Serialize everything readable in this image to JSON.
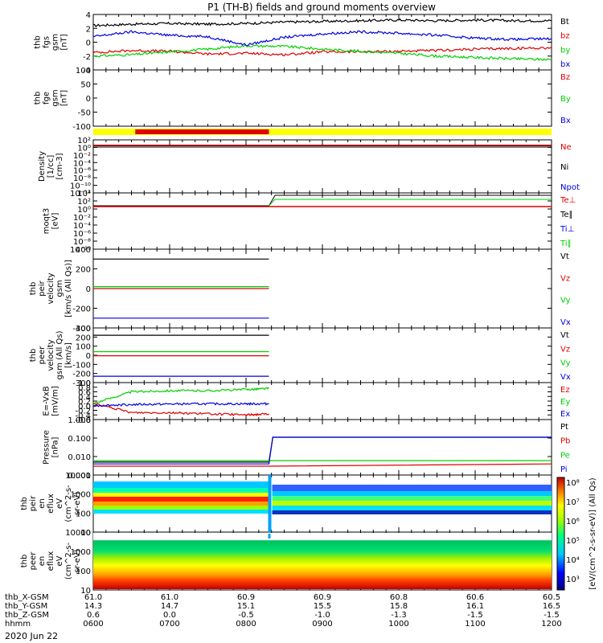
{
  "title": "P1 (TH-B) fields and ground moments overview",
  "date_label": "2020 Jun 22",
  "colors": {
    "black": "#000000",
    "red": "#e00000",
    "green": "#00d000",
    "blue": "#0000e0",
    "yellow": "#ffff00",
    "bar_red": "#e00000",
    "darkred": "#a00000"
  },
  "panels": [
    {
      "id": "fgs",
      "ylabel": [
        "thb",
        "fgs",
        "gsm",
        "[nT]"
      ],
      "ticks": [
        "4",
        "2",
        "0",
        "-2",
        "-4"
      ],
      "legend": [
        {
          "text": "Bt",
          "color": "#000000"
        },
        {
          "text": "bz",
          "color": "#e00000"
        },
        {
          "text": "by",
          "color": "#00d000"
        },
        {
          "text": "bx",
          "color": "#0000e0"
        }
      ]
    },
    {
      "id": "fge",
      "ylabel": [
        "thb",
        "fge",
        "gsm",
        "[nT]"
      ],
      "ticks": [
        "100",
        "50",
        "0",
        "-50",
        "-100"
      ],
      "legend": [
        {
          "text": "Bz",
          "color": "#e00000"
        },
        {
          "text": "By",
          "color": "#00d000"
        },
        {
          "text": "Bx",
          "color": "#0000e0"
        }
      ]
    },
    {
      "id": "density",
      "ylabel": [
        "Density",
        "[1/cc]",
        "[cm-3]"
      ],
      "ticks": [
        "10²",
        "10⁰",
        "10⁻²",
        "10⁻⁴",
        "10⁻⁶",
        "10⁻⁸",
        "10⁻¹⁰",
        "10⁻¹²"
      ],
      "legend": [
        {
          "text": "Ne",
          "color": "#e00000"
        },
        {
          "text": "Ni",
          "color": "#000000"
        },
        {
          "text": "Npot",
          "color": "#0000e0"
        }
      ]
    },
    {
      "id": "temp",
      "ylabel": [
        "moqt3",
        "[eV]"
      ],
      "ticks": [
        "10⁴",
        "10²",
        "10⁰",
        "10⁻²",
        "10⁻⁴",
        "10⁻⁶",
        "10⁻⁸",
        "10⁻¹⁰"
      ],
      "legend": [
        {
          "text": "Te⊥",
          "color": "#e00000"
        },
        {
          "text": "Te∥",
          "color": "#000000"
        },
        {
          "text": "Ti⊥",
          "color": "#0000e0"
        },
        {
          "text": "Ti∥",
          "color": "#00d000"
        }
      ]
    },
    {
      "id": "vi",
      "ylabel": [
        "thb",
        "peir",
        "velocity",
        "gsm",
        "[km/s (All Qs)]"
      ],
      "ticks": [
        "400",
        "200",
        "0",
        "-200",
        "-400"
      ],
      "legend": [
        {
          "text": "Vt",
          "color": "#000000"
        },
        {
          "text": "Vz",
          "color": "#e00000"
        },
        {
          "text": "Vy",
          "color": "#00d000"
        },
        {
          "text": "Vx",
          "color": "#0000e0"
        }
      ]
    },
    {
      "id": "ve",
      "ylabel": [
        "thb",
        "peer",
        "velocity",
        "gsm (All Qs)",
        "[km/s]"
      ],
      "ticks": [
        "300",
        "200",
        "100",
        "0",
        "-100",
        "-200",
        "-300"
      ],
      "legend": [
        {
          "text": "Vt",
          "color": "#000000"
        },
        {
          "text": "Vz",
          "color": "#e00000"
        },
        {
          "text": "Vy",
          "color": "#00d000"
        },
        {
          "text": "Vx",
          "color": "#0000e0"
        }
      ]
    },
    {
      "id": "efield",
      "ylabel": [
        "E=-VxB",
        "[mV/m]"
      ],
      "ticks": [
        "1.0",
        "0.8",
        "0.6",
        "0.4",
        "0.2",
        "0.0",
        "-0.2",
        "-0.4",
        "-0.6"
      ],
      "legend": [
        {
          "text": "Ez",
          "color": "#e00000"
        },
        {
          "text": "Ey",
          "color": "#00d000"
        },
        {
          "text": "Ex",
          "color": "#0000e0"
        }
      ]
    },
    {
      "id": "pressure",
      "ylabel": [
        "Pressure",
        "[nPa]"
      ],
      "ticks": [
        "1.000",
        "0.100",
        "0.010",
        "0.001"
      ],
      "legend": [
        {
          "text": "Pt",
          "color": "#000000"
        },
        {
          "text": "Pb",
          "color": "#e00000"
        },
        {
          "text": "Pe",
          "color": "#00d000"
        },
        {
          "text": "Pi",
          "color": "#0000e0"
        }
      ]
    },
    {
      "id": "ispec",
      "ylabel": [
        "thb",
        "peir",
        "en",
        "eflux",
        "eV",
        "(cm^2-s-",
        "sr-eV)"
      ],
      "ticks": [
        "10000",
        "1000",
        "100",
        "10"
      ],
      "legend": []
    },
    {
      "id": "espec",
      "ylabel": [
        "thb",
        "peer",
        "en",
        "eflux",
        "eV",
        "(cm^2-s-",
        "sr-eV)"
      ],
      "ticks": [
        "10000",
        "1000",
        "100",
        "10"
      ],
      "legend": []
    }
  ],
  "colorbar": {
    "label": "[eV/(cm^2-s-sr-eV)] (All Qs)",
    "ticks": [
      "10⁸",
      "10⁷",
      "10⁶",
      "10⁵",
      "10⁴",
      "10³"
    ]
  },
  "footer": {
    "rows": [
      {
        "label": "thb_X-GSM",
        "values": [
          "61.0",
          "61.0",
          "60.9",
          "60.9",
          "60.8",
          "60.6",
          "60.5"
        ]
      },
      {
        "label": "thb_Y-GSM",
        "values": [
          "14.3",
          "14.7",
          "15.1",
          "15.5",
          "15.8",
          "16.1",
          "16.5"
        ]
      },
      {
        "label": "thb_Z-GSM",
        "values": [
          "0.6",
          "0.0",
          "-0.5",
          "-1.0",
          "-1.3",
          "-1.5",
          "-1.5"
        ]
      },
      {
        "label": "hhmm",
        "values": [
          "0600",
          "0700",
          "0800",
          "0900",
          "1000",
          "1100",
          "1200"
        ]
      }
    ]
  },
  "chart_data": {
    "type": "line",
    "title": "P1 (TH-B) fields and ground moments overview",
    "x": [
      "0600",
      "0700",
      "0800",
      "0900",
      "1000",
      "1100",
      "1200"
    ],
    "x_range_hours": [
      6,
      12
    ],
    "panels": [
      {
        "id": "fgs",
        "ylim": [
          -4,
          4
        ],
        "series": [
          {
            "name": "Bt",
            "color": "#000000",
            "t": [
              6.0,
              6.5,
              7.0,
              7.5,
              8.0,
              8.5,
              9.0,
              9.5,
              10.0,
              10.5,
              11.0,
              11.5,
              12.0
            ],
            "y": [
              2.4,
              2.6,
              2.7,
              2.6,
              2.7,
              2.9,
              3.0,
              3.1,
              3.2,
              3.1,
              3.2,
              3.1,
              3.1
            ]
          },
          {
            "name": "bz",
            "color": "#e00000",
            "t": [
              6.0,
              6.5,
              7.0,
              7.5,
              8.0,
              8.5,
              9.0,
              9.5,
              10.0,
              10.5,
              11.0,
              11.5,
              12.0
            ],
            "y": [
              -1.5,
              -1.2,
              -1.3,
              -1.7,
              -1.6,
              -1.8,
              -1.4,
              -1.4,
              -1.3,
              -1.2,
              -1.0,
              -0.9,
              -0.8
            ]
          },
          {
            "name": "by",
            "color": "#00d000",
            "t": [
              6.0,
              6.5,
              7.0,
              7.5,
              8.0,
              8.5,
              9.0,
              9.5,
              10.0,
              10.5,
              11.0,
              11.5,
              12.0
            ],
            "y": [
              -2.0,
              -1.8,
              -1.4,
              -1.0,
              -0.5,
              -0.6,
              -1.0,
              -1.3,
              -1.6,
              -2.0,
              -2.2,
              -2.4,
              -2.5
            ]
          },
          {
            "name": "bx",
            "color": "#0000e0",
            "t": [
              6.0,
              6.5,
              7.0,
              7.5,
              8.0,
              8.5,
              9.0,
              9.5,
              10.0,
              10.5,
              11.0,
              11.5,
              12.0
            ],
            "y": [
              0.8,
              1.5,
              1.0,
              0.8,
              -0.4,
              0.7,
              1.2,
              1.5,
              1.3,
              1.0,
              0.6,
              0.4,
              0.5
            ]
          }
        ]
      },
      {
        "id": "vi",
        "ylim": [
          -400,
          400
        ],
        "series": [
          {
            "name": "Vt",
            "color": "#000000",
            "t": [
              6.0,
              8.3
            ],
            "y": [
              300,
              300
            ]
          },
          {
            "name": "Vz",
            "color": "#e00000",
            "t": [
              6.0,
              8.3
            ],
            "y": [
              0,
              0
            ]
          },
          {
            "name": "Vy",
            "color": "#00d000",
            "t": [
              6.0,
              8.3
            ],
            "y": [
              20,
              20
            ]
          },
          {
            "name": "Vx",
            "color": "#0000e0",
            "t": [
              6.0,
              8.3
            ],
            "y": [
              -300,
              -300
            ]
          }
        ]
      },
      {
        "id": "ve",
        "ylim": [
          -300,
          300
        ],
        "series": [
          {
            "name": "Vt",
            "color": "#000000",
            "t": [
              6.0,
              8.3
            ],
            "y": [
              220,
              220
            ]
          },
          {
            "name": "Vz",
            "color": "#e00000",
            "t": [
              6.0,
              8.3
            ],
            "y": [
              -5,
              -5
            ]
          },
          {
            "name": "Vy",
            "color": "#00d000",
            "t": [
              6.0,
              8.3
            ],
            "y": [
              40,
              40
            ]
          },
          {
            "name": "Vx",
            "color": "#0000e0",
            "t": [
              6.0,
              8.3
            ],
            "y": [
              -230,
              -230
            ]
          }
        ]
      },
      {
        "id": "efield",
        "ylim": [
          -0.6,
          1.0
        ],
        "series": [
          {
            "name": "Ez",
            "color": "#e00000",
            "t": [
              6.0,
              6.5,
              7.0,
              7.5,
              8.0,
              8.3
            ],
            "y": [
              0.1,
              -0.3,
              -0.3,
              -0.35,
              -0.4,
              -0.35
            ]
          },
          {
            "name": "Ey",
            "color": "#00d000",
            "t": [
              6.0,
              6.5,
              7.0,
              7.5,
              8.0,
              8.3
            ],
            "y": [
              0.1,
              0.6,
              0.65,
              0.65,
              0.7,
              0.75
            ]
          },
          {
            "name": "Ex",
            "color": "#0000e0",
            "t": [
              6.0,
              6.5,
              7.0,
              7.5,
              8.0,
              8.3
            ],
            "y": [
              0.0,
              0.05,
              0.07,
              0.08,
              0.08,
              0.08
            ]
          }
        ]
      },
      {
        "id": "pressure",
        "ylim": [
          0.001,
          1.0
        ],
        "log": true,
        "series": [
          {
            "name": "Pt",
            "color": "#000000",
            "t": [
              6.0,
              8.3,
              8.35,
              12.0
            ],
            "y": [
              0.005,
              0.005,
              0.11,
              0.11
            ]
          },
          {
            "name": "Pb",
            "color": "#e00000",
            "t": [
              6.0,
              7.0,
              8.3,
              12.0
            ],
            "y": [
              0.003,
              0.003,
              0.003,
              0.004
            ]
          },
          {
            "name": "Pe",
            "color": "#00d000",
            "t": [
              6.0,
              8.3,
              12.0
            ],
            "y": [
              0.006,
              0.006,
              0.006
            ]
          },
          {
            "name": "Pi",
            "color": "#0000e0",
            "t": [
              6.0,
              8.3,
              8.35,
              12.0
            ],
            "y": [
              0.004,
              0.004,
              0.11,
              0.11
            ]
          }
        ]
      }
    ]
  }
}
